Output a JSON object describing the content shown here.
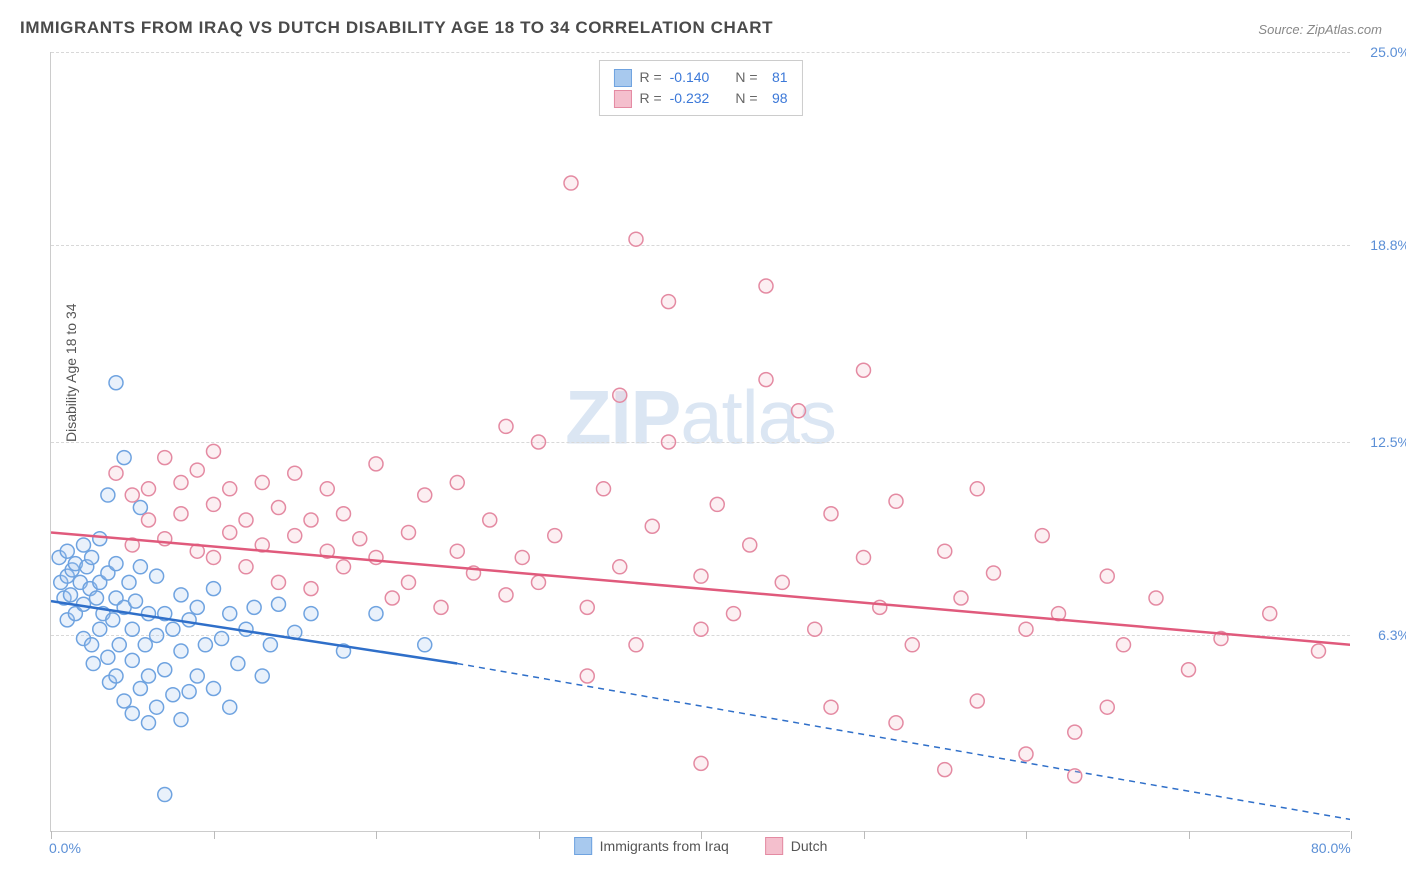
{
  "title": "IMMIGRANTS FROM IRAQ VS DUTCH DISABILITY AGE 18 TO 34 CORRELATION CHART",
  "source_label": "Source:",
  "source_value": "ZipAtlas.com",
  "y_axis_label": "Disability Age 18 to 34",
  "watermark_bold": "ZIP",
  "watermark_rest": "atlas",
  "chart": {
    "type": "scatter",
    "xlim": [
      0,
      80
    ],
    "ylim": [
      0,
      25
    ],
    "x_tick_positions": [
      0,
      10,
      20,
      30,
      40,
      50,
      60,
      70,
      80
    ],
    "x_tick_labels": {
      "0": "0.0%",
      "80": "80.0%"
    },
    "y_grid_positions": [
      6.3,
      12.5,
      18.8,
      25.0
    ],
    "y_grid_labels": [
      "6.3%",
      "12.5%",
      "18.8%",
      "25.0%"
    ],
    "background_color": "#ffffff",
    "grid_color": "#d8d8d8",
    "axis_color": "#cccccc",
    "marker_radius": 7,
    "marker_stroke_width": 1.5,
    "marker_fill_opacity": 0.25
  },
  "series": [
    {
      "name": "Immigrants from Iraq",
      "color_stroke": "#6fa3e0",
      "color_fill": "#a8c9ee",
      "r_label": "R =",
      "r_value": "-0.140",
      "n_label": "N =",
      "n_value": "81",
      "trend": {
        "solid": {
          "x1": 0,
          "y1": 7.4,
          "x2": 25,
          "y2": 5.4
        },
        "dashed": {
          "x1": 25,
          "y1": 5.4,
          "x2": 80,
          "y2": 0.4
        },
        "line_width": 2.5,
        "color": "#2f6fc9"
      },
      "points": [
        [
          0.5,
          8.8
        ],
        [
          0.6,
          8.0
        ],
        [
          0.8,
          7.5
        ],
        [
          1.0,
          8.2
        ],
        [
          1.0,
          9.0
        ],
        [
          1.0,
          6.8
        ],
        [
          1.2,
          7.6
        ],
        [
          1.3,
          8.4
        ],
        [
          1.5,
          7.0
        ],
        [
          1.5,
          8.6
        ],
        [
          1.8,
          8.0
        ],
        [
          2.0,
          7.3
        ],
        [
          2.0,
          9.2
        ],
        [
          2.0,
          6.2
        ],
        [
          2.2,
          8.5
        ],
        [
          2.4,
          7.8
        ],
        [
          2.5,
          6.0
        ],
        [
          2.5,
          8.8
        ],
        [
          2.6,
          5.4
        ],
        [
          2.8,
          7.5
        ],
        [
          3.0,
          8.0
        ],
        [
          3.0,
          6.5
        ],
        [
          3.0,
          9.4
        ],
        [
          3.2,
          7.0
        ],
        [
          3.5,
          5.6
        ],
        [
          3.5,
          8.3
        ],
        [
          3.5,
          10.8
        ],
        [
          3.6,
          4.8
        ],
        [
          3.8,
          6.8
        ],
        [
          4.0,
          7.5
        ],
        [
          4.0,
          8.6
        ],
        [
          4.0,
          5.0
        ],
        [
          4.2,
          6.0
        ],
        [
          4.5,
          7.2
        ],
        [
          4.5,
          4.2
        ],
        [
          4.5,
          12.0
        ],
        [
          4.8,
          8.0
        ],
        [
          5.0,
          6.5
        ],
        [
          5.0,
          5.5
        ],
        [
          5.0,
          3.8
        ],
        [
          5.2,
          7.4
        ],
        [
          5.5,
          8.5
        ],
        [
          5.5,
          4.6
        ],
        [
          5.5,
          10.4
        ],
        [
          5.8,
          6.0
        ],
        [
          6.0,
          7.0
        ],
        [
          6.0,
          5.0
        ],
        [
          6.0,
          3.5
        ],
        [
          6.5,
          8.2
        ],
        [
          6.5,
          6.3
        ],
        [
          6.5,
          4.0
        ],
        [
          7.0,
          7.0
        ],
        [
          7.0,
          5.2
        ],
        [
          7.0,
          1.2
        ],
        [
          7.5,
          6.5
        ],
        [
          7.5,
          4.4
        ],
        [
          8.0,
          7.6
        ],
        [
          8.0,
          5.8
        ],
        [
          8.0,
          3.6
        ],
        [
          8.5,
          6.8
        ],
        [
          8.5,
          4.5
        ],
        [
          9.0,
          7.2
        ],
        [
          9.0,
          5.0
        ],
        [
          9.5,
          6.0
        ],
        [
          10.0,
          7.8
        ],
        [
          10.0,
          4.6
        ],
        [
          10.5,
          6.2
        ],
        [
          11.0,
          7.0
        ],
        [
          11.0,
          4.0
        ],
        [
          11.5,
          5.4
        ],
        [
          12.0,
          6.5
        ],
        [
          12.5,
          7.2
        ],
        [
          13.0,
          5.0
        ],
        [
          13.5,
          6.0
        ],
        [
          14.0,
          7.3
        ],
        [
          15.0,
          6.4
        ],
        [
          16.0,
          7.0
        ],
        [
          18.0,
          5.8
        ],
        [
          20.0,
          7.0
        ],
        [
          23.0,
          6.0
        ],
        [
          4.0,
          14.4
        ]
      ]
    },
    {
      "name": "Dutch",
      "color_stroke": "#e48aa2",
      "color_fill": "#f4bfcd",
      "r_label": "R =",
      "r_value": "-0.232",
      "n_label": "N =",
      "n_value": "98",
      "trend": {
        "solid": {
          "x1": 0,
          "y1": 9.6,
          "x2": 80,
          "y2": 6.0
        },
        "line_width": 2.5,
        "color": "#e05a7c"
      },
      "points": [
        [
          4,
          11.5
        ],
        [
          5,
          10.8
        ],
        [
          5,
          9.2
        ],
        [
          6,
          11.0
        ],
        [
          6,
          10.0
        ],
        [
          7,
          12.0
        ],
        [
          7,
          9.4
        ],
        [
          8,
          11.2
        ],
        [
          8,
          10.2
        ],
        [
          9,
          9.0
        ],
        [
          9,
          11.6
        ],
        [
          10,
          10.5
        ],
        [
          10,
          8.8
        ],
        [
          10,
          12.2
        ],
        [
          11,
          9.6
        ],
        [
          11,
          11.0
        ],
        [
          12,
          10.0
        ],
        [
          12,
          8.5
        ],
        [
          13,
          11.2
        ],
        [
          13,
          9.2
        ],
        [
          14,
          10.4
        ],
        [
          14,
          8.0
        ],
        [
          15,
          11.5
        ],
        [
          15,
          9.5
        ],
        [
          16,
          10.0
        ],
        [
          16,
          7.8
        ],
        [
          17,
          9.0
        ],
        [
          17,
          11.0
        ],
        [
          18,
          8.5
        ],
        [
          18,
          10.2
        ],
        [
          19,
          9.4
        ],
        [
          20,
          8.8
        ],
        [
          20,
          11.8
        ],
        [
          21,
          7.5
        ],
        [
          22,
          9.6
        ],
        [
          22,
          8.0
        ],
        [
          23,
          10.8
        ],
        [
          24,
          7.2
        ],
        [
          25,
          9.0
        ],
        [
          25,
          11.2
        ],
        [
          26,
          8.3
        ],
        [
          27,
          10.0
        ],
        [
          28,
          7.6
        ],
        [
          28,
          13.0
        ],
        [
          29,
          8.8
        ],
        [
          30,
          12.5
        ],
        [
          30,
          8.0
        ],
        [
          31,
          9.5
        ],
        [
          32,
          20.8
        ],
        [
          33,
          7.2
        ],
        [
          33,
          5.0
        ],
        [
          34,
          11.0
        ],
        [
          35,
          14.0
        ],
        [
          35,
          8.5
        ],
        [
          36,
          19.0
        ],
        [
          36,
          6.0
        ],
        [
          37,
          9.8
        ],
        [
          38,
          12.5
        ],
        [
          38,
          17.0
        ],
        [
          40,
          8.2
        ],
        [
          40,
          6.5
        ],
        [
          40,
          2.2
        ],
        [
          41,
          10.5
        ],
        [
          42,
          7.0
        ],
        [
          43,
          9.2
        ],
        [
          44,
          14.5
        ],
        [
          44,
          17.5
        ],
        [
          45,
          8.0
        ],
        [
          46,
          13.5
        ],
        [
          47,
          6.5
        ],
        [
          48,
          10.2
        ],
        [
          48,
          4.0
        ],
        [
          50,
          8.8
        ],
        [
          50,
          14.8
        ],
        [
          51,
          7.2
        ],
        [
          52,
          3.5
        ],
        [
          52,
          10.6
        ],
        [
          53,
          6.0
        ],
        [
          55,
          9.0
        ],
        [
          55,
          2.0
        ],
        [
          56,
          7.5
        ],
        [
          57,
          11.0
        ],
        [
          57,
          4.2
        ],
        [
          58,
          8.3
        ],
        [
          60,
          6.5
        ],
        [
          60,
          2.5
        ],
        [
          61,
          9.5
        ],
        [
          62,
          7.0
        ],
        [
          63,
          3.2
        ],
        [
          63,
          1.8
        ],
        [
          65,
          8.2
        ],
        [
          65,
          4.0
        ],
        [
          66,
          6.0
        ],
        [
          68,
          7.5
        ],
        [
          70,
          5.2
        ],
        [
          72,
          6.2
        ],
        [
          75,
          7.0
        ],
        [
          78,
          5.8
        ]
      ]
    }
  ]
}
